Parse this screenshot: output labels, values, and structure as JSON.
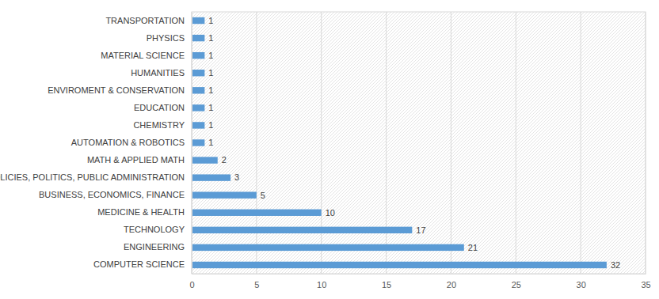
{
  "chart_data": {
    "type": "bar",
    "orientation": "horizontal",
    "categories": [
      "TRANSPORTATION",
      "PHYSICS",
      "MATERIAL SCIENCE",
      "HUMANITIES",
      "ENVIROMENT & CONSERVATION",
      "EDUCATION",
      "CHEMISTRY",
      "AUTOMATION & ROBOTICS",
      "MATH & APPLIED MATH",
      "POLICIES, POLITICS, PUBLIC ADMINISTRATION",
      "BUSINESS, ECONOMICS, FINANCE",
      "MEDICINE & HEALTH",
      "TECHNOLOGY",
      "ENGINEERING",
      "COMPUTER SCIENCE"
    ],
    "values": [
      1,
      1,
      1,
      1,
      1,
      1,
      1,
      1,
      2,
      3,
      5,
      10,
      17,
      21,
      32
    ],
    "color": "#5b9bd5",
    "xlim": [
      0,
      35
    ],
    "xticks": [
      0,
      5,
      10,
      15,
      20,
      25,
      30,
      35
    ],
    "grid": true,
    "data_labels": true
  }
}
